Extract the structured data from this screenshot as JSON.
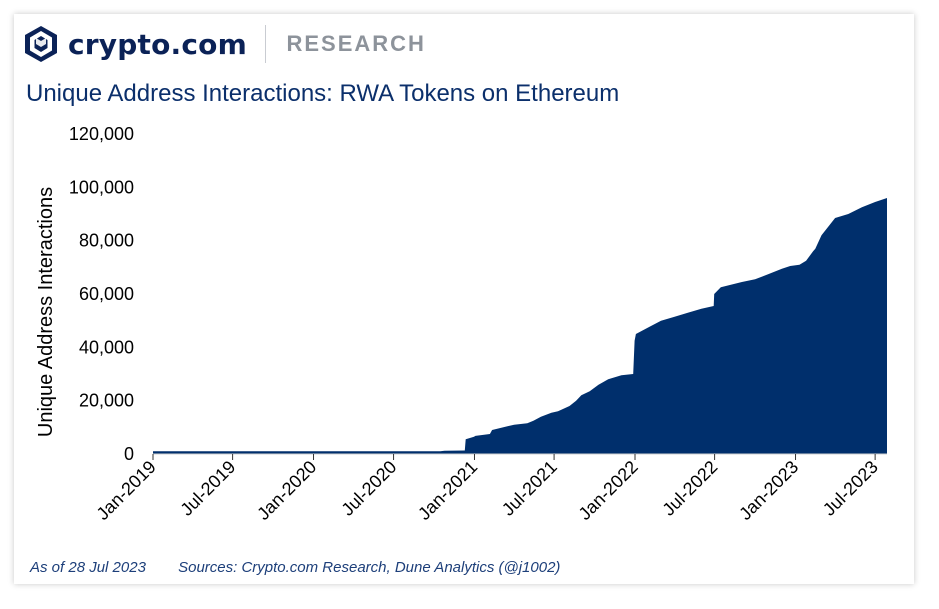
{
  "brand": {
    "name": "crypto.com",
    "section": "RESEARCH"
  },
  "footer": {
    "as_of": "As of 28 Jul 2023",
    "sources": "Sources: Crypto.com Research, Dune Analytics (@j1002)"
  },
  "colors": {
    "area": "#002f6c",
    "title": "#0b2f6b",
    "footer": "#1d3f7a",
    "brand": "#0b2257",
    "muted": "#8d939b"
  },
  "chart_data": {
    "type": "area",
    "title": "Unique Address Interactions: RWA Tokens on Ethereum",
    "xlabel": "",
    "ylabel": "Unique Address Interactions",
    "ylim": [
      0,
      120000
    ],
    "xlim": [
      "2019-01-01",
      "2023-07-28"
    ],
    "yticks": [
      0,
      20000,
      40000,
      60000,
      80000,
      100000,
      120000
    ],
    "ytick_labels": [
      "0",
      "20,000",
      "40,000",
      "60,000",
      "80,000",
      "100,000",
      "120,000"
    ],
    "xticks": [
      "2019-01-01",
      "2019-07-01",
      "2020-01-01",
      "2020-07-01",
      "2021-01-01",
      "2021-07-01",
      "2022-01-01",
      "2022-07-01",
      "2023-01-01",
      "2023-07-01"
    ],
    "xtick_labels": [
      "Jan-2019",
      "Jul-2019",
      "Jan-2020",
      "Jul-2020",
      "Jan-2021",
      "Jul-2021",
      "Jan-2022",
      "Jul-2022",
      "Jan-2023",
      "Jul-2023"
    ],
    "grid": false,
    "legend": "none",
    "series": [
      {
        "x": [
          "2019-01-01",
          "2020-10-15",
          "2020-10-25",
          "2020-12-10",
          "2020-12-12",
          "2020-12-31",
          "2021-01-03",
          "2021-02-05",
          "2021-02-10",
          "2021-04-01",
          "2021-05-01",
          "2021-05-15",
          "2021-06-01",
          "2021-06-25",
          "2021-07-10",
          "2021-07-20",
          "2021-08-05",
          "2021-08-20",
          "2021-09-01",
          "2021-09-20",
          "2021-10-10",
          "2021-11-01",
          "2021-12-01",
          "2021-12-28",
          "2021-12-31",
          "2022-01-03",
          "2022-02-01",
          "2022-03-01",
          "2022-04-01",
          "2022-05-01",
          "2022-06-01",
          "2022-06-29",
          "2022-06-30",
          "2022-07-15",
          "2022-09-01",
          "2022-10-01",
          "2022-11-01",
          "2022-12-01",
          "2022-12-20",
          "2023-01-10",
          "2023-01-25",
          "2023-02-10",
          "2023-02-15",
          "2023-03-01",
          "2023-03-20",
          "2023-04-01",
          "2023-05-01",
          "2023-06-01",
          "2023-07-01",
          "2023-07-28"
        ],
        "y": [
          1000,
          1000,
          1200,
          1300,
          5500,
          6500,
          6800,
          7500,
          9000,
          11000,
          11500,
          12500,
          14000,
          15500,
          16000,
          16800,
          18000,
          20000,
          22000,
          23500,
          26000,
          28000,
          29500,
          30000,
          42500,
          45000,
          47500,
          50000,
          51500,
          53000,
          54500,
          55500,
          60000,
          62500,
          64500,
          65500,
          67500,
          69500,
          70500,
          71000,
          72500,
          76000,
          77000,
          82000,
          86000,
          88500,
          90000,
          92500,
          94500,
          96000
        ]
      }
    ]
  }
}
